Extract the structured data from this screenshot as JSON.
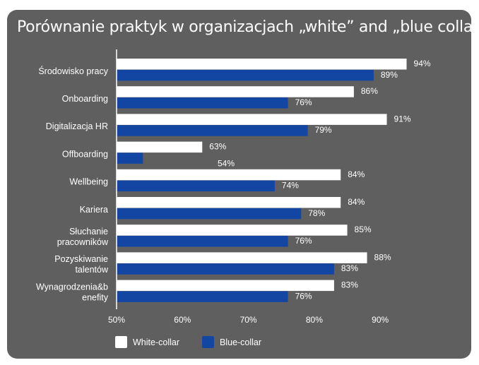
{
  "title": "Porównanie praktyk w organizacjach „white” and „blue collar”",
  "chart_data": {
    "type": "bar",
    "orientation": "horizontal",
    "title": "Porównanie praktyk w organizacjach „white” and „blue collar”",
    "categories": [
      [
        "Środowisko pracy"
      ],
      [
        "Onboarding"
      ],
      [
        "Digitalizacja  HR"
      ],
      [
        "Offboarding"
      ],
      [
        "Wellbeing"
      ],
      [
        "Kariera"
      ],
      [
        "Słuchanie",
        "pracowników"
      ],
      [
        "Pozyskiwanie",
        "talentów"
      ],
      [
        "Wynagrodzenia&b",
        "enefity"
      ]
    ],
    "series": [
      {
        "name": "White-collar",
        "color": "#ffffff",
        "values": [
          94,
          86,
          91,
          63,
          84,
          84,
          85,
          88,
          83
        ],
        "labels": [
          "94%",
          "86%",
          "91%",
          "63%",
          "84%",
          "84%",
          "85%",
          "88%",
          "83%"
        ]
      },
      {
        "name": "Blue-collar",
        "color": "#1346a3",
        "values": [
          89,
          76,
          79,
          54,
          74,
          78,
          76,
          83,
          76
        ],
        "labels": [
          "89%",
          "76%",
          "79%",
          "54%",
          "74%",
          "78%",
          "76%",
          "83%",
          "76%"
        ]
      }
    ],
    "xlim": [
      50,
      95
    ],
    "xticks": [
      50,
      60,
      70,
      80,
      90
    ],
    "xtick_labels": [
      "50%",
      "60%",
      "70%",
      "80%",
      "90%"
    ],
    "xlabel": "",
    "ylabel": "",
    "legend_position": "bottom-left"
  },
  "legend": {
    "white_label": "White-collar",
    "blue_label": "Blue-collar",
    "white_color": "#ffffff",
    "blue_color": "#1346a3"
  },
  "colors": {
    "background": "#5f5f5f",
    "text": "#ffffff"
  }
}
